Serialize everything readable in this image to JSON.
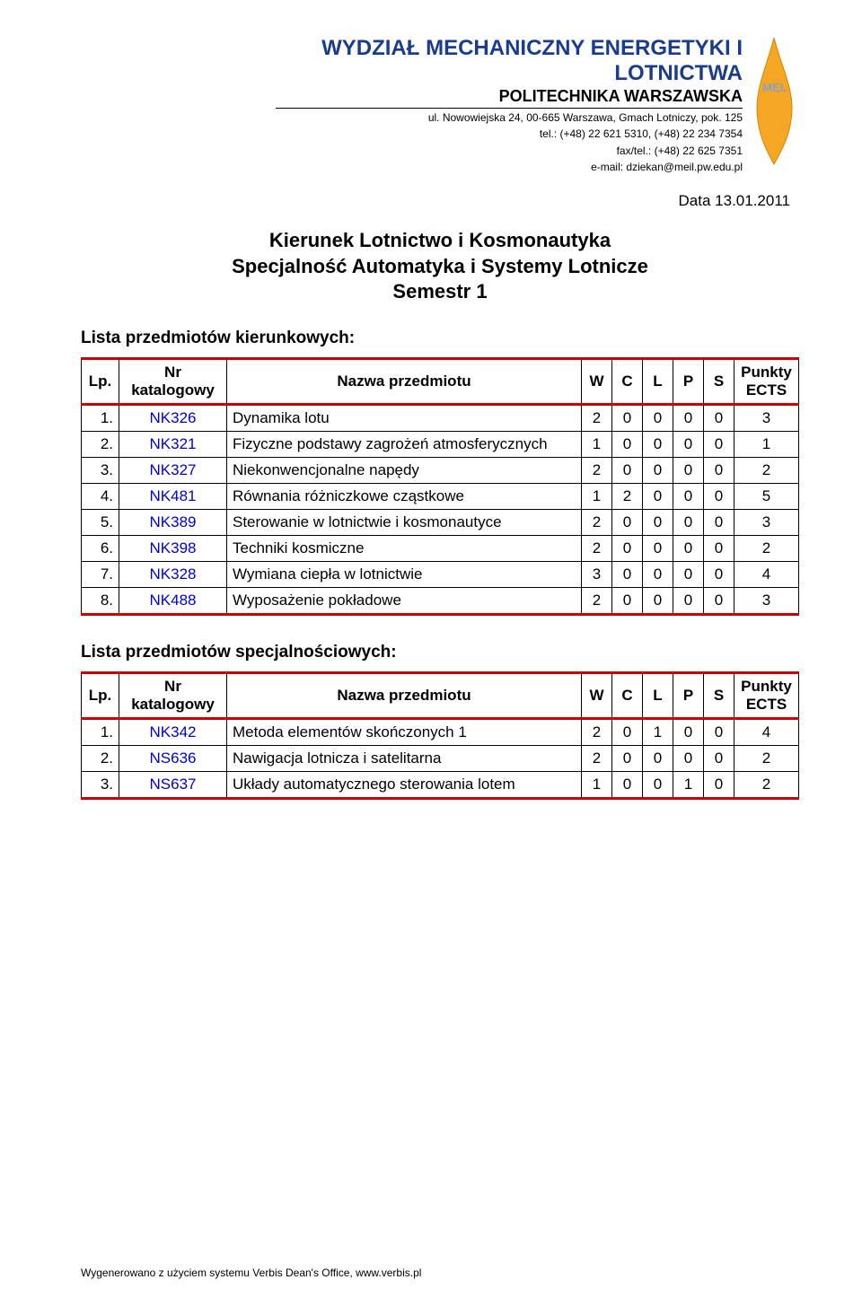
{
  "header": {
    "department": "WYDZIAŁ MECHANICZNY ENERGETYKI I LOTNICTWA",
    "university": "POLITECHNIKA WARSZAWSKA",
    "address_line1": "ul. Nowowiejska 24, 00-665 Warszawa, Gmach Lotniczy, pok. 125",
    "address_line2": "tel.: (+48) 22 621 5310, (+48) 22 234 7354",
    "address_line3": "fax/tel.: (+48) 22 625 7351",
    "address_line4": "e-mail: dziekan@meil.pw.edu.pl",
    "logo_text": "MEL",
    "logo_fill": "#f5a623",
    "logo_text_color": "#8aa0c8"
  },
  "date": "Data 13.01.2011",
  "title": {
    "line1": "Kierunek Lotnictwo i Kosmonautyka",
    "line2": "Specjalność Automatyka i Systemy Lotnicze",
    "line3": "Semestr 1"
  },
  "table_headers": {
    "lp": "Lp.",
    "nr": "Nr katalogowy",
    "name": "Nazwa przedmiotu",
    "w": "W",
    "c": "C",
    "l": "L",
    "p": "P",
    "s": "S",
    "ects": "Punkty ECTS"
  },
  "section1": {
    "heading": "Lista przedmiotów kierunkowych:",
    "rows": [
      {
        "lp": "1.",
        "code": "NK326",
        "name": "Dynamika lotu",
        "w": "2",
        "c": "0",
        "l": "0",
        "p": "0",
        "s": "0",
        "ects": "3"
      },
      {
        "lp": "2.",
        "code": "NK321",
        "name": "Fizyczne podstawy zagrożeń atmosferycznych",
        "w": "1",
        "c": "0",
        "l": "0",
        "p": "0",
        "s": "0",
        "ects": "1"
      },
      {
        "lp": "3.",
        "code": "NK327",
        "name": "Niekonwencjonalne napędy",
        "w": "2",
        "c": "0",
        "l": "0",
        "p": "0",
        "s": "0",
        "ects": "2"
      },
      {
        "lp": "4.",
        "code": "NK481",
        "name": "Równania różniczkowe cząstkowe",
        "w": "1",
        "c": "2",
        "l": "0",
        "p": "0",
        "s": "0",
        "ects": "5"
      },
      {
        "lp": "5.",
        "code": "NK389",
        "name": "Sterowanie w lotnictwie i kosmonautyce",
        "w": "2",
        "c": "0",
        "l": "0",
        "p": "0",
        "s": "0",
        "ects": "3"
      },
      {
        "lp": "6.",
        "code": "NK398",
        "name": "Techniki kosmiczne",
        "w": "2",
        "c": "0",
        "l": "0",
        "p": "0",
        "s": "0",
        "ects": "2"
      },
      {
        "lp": "7.",
        "code": "NK328",
        "name": "Wymiana ciepła w lotnictwie",
        "w": "3",
        "c": "0",
        "l": "0",
        "p": "0",
        "s": "0",
        "ects": "4"
      },
      {
        "lp": "8.",
        "code": "NK488",
        "name": "Wyposażenie pokładowe",
        "w": "2",
        "c": "0",
        "l": "0",
        "p": "0",
        "s": "0",
        "ects": "3"
      }
    ]
  },
  "section2": {
    "heading": "Lista przedmiotów specjalnościowych:",
    "rows": [
      {
        "lp": "1.",
        "code": "NK342",
        "name": "Metoda elementów skończonych 1",
        "w": "2",
        "c": "0",
        "l": "1",
        "p": "0",
        "s": "0",
        "ects": "4"
      },
      {
        "lp": "2.",
        "code": "NS636",
        "name": "Nawigacja lotnicza i satelitarna",
        "w": "2",
        "c": "0",
        "l": "0",
        "p": "0",
        "s": "0",
        "ects": "2"
      },
      {
        "lp": "3.",
        "code": "NS637",
        "name": "Układy automatycznego sterowania lotem",
        "w": "1",
        "c": "0",
        "l": "0",
        "p": "1",
        "s": "0",
        "ects": "2"
      }
    ]
  },
  "footer": "Wygenerowano z użyciem systemu Verbis Dean's Office, www.verbis.pl"
}
